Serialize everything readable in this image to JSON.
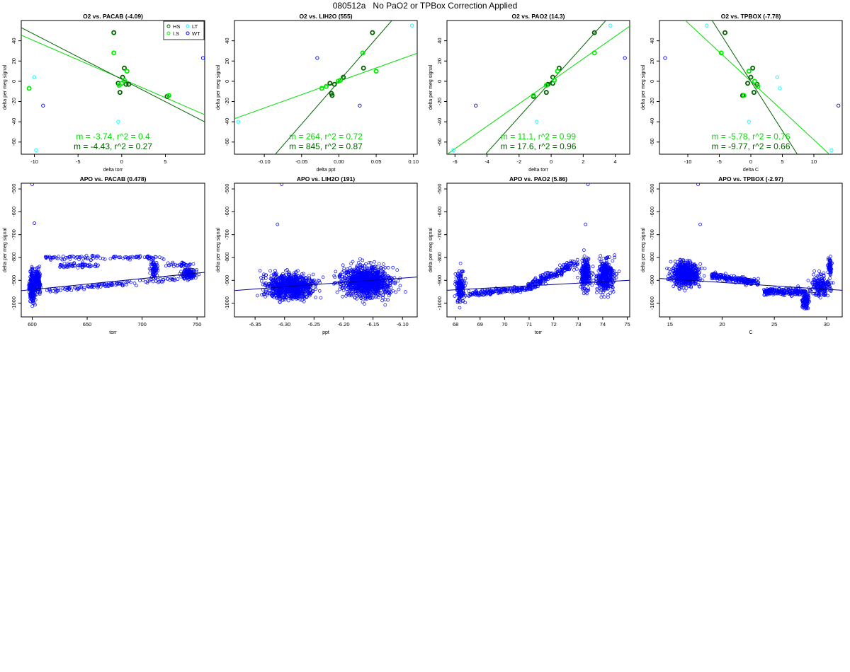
{
  "page": {
    "title": "080512a   No PaO2 or TPBox Correction Applied"
  },
  "colors": {
    "HS": "#006400",
    "I.S": "#00ee00",
    "LT": "#00ffff",
    "WT": "#0000ff",
    "fit_is": "#00dd00",
    "fit_hs": "#006400",
    "apo_points": "#0000ff",
    "apo_fit": "#00008b"
  },
  "chart_data": [
    {
      "type": "scatter",
      "title": "O2 vs. PACAB (-4.09)",
      "xlabel": "delta torr",
      "ylabel": "delta per meg signal",
      "xlim": [
        -11.5,
        9.5
      ],
      "ylim": [
        -72,
        60
      ],
      "xticks": [
        -10,
        -5,
        0,
        5
      ],
      "yticks": [
        -60,
        -40,
        -20,
        0,
        20,
        40
      ],
      "legend": {
        "position": "top-right",
        "entries": [
          "HS",
          "I.S",
          "LT",
          "WT"
        ]
      },
      "series": [
        {
          "name": "HS",
          "points": [
            [
              -0.9,
              48
            ],
            [
              0.3,
              13
            ],
            [
              -0.4,
              -2
            ],
            [
              0.1,
              4
            ],
            [
              0.5,
              -3
            ],
            [
              -0.2,
              -11
            ],
            [
              0.8,
              -3
            ],
            [
              5.2,
              -15
            ]
          ]
        },
        {
          "name": "I.S",
          "points": [
            [
              -0.9,
              28
            ],
            [
              0.6,
              10
            ],
            [
              -10.6,
              -7
            ],
            [
              -0.3,
              -4
            ],
            [
              0.3,
              1
            ],
            [
              5.4,
              -14
            ],
            [
              0,
              -2
            ]
          ]
        },
        {
          "name": "LT",
          "points": [
            [
              -9.8,
              -68
            ],
            [
              -0.4,
              -40
            ],
            [
              -10.0,
              4
            ]
          ]
        },
        {
          "name": "WT",
          "points": [
            [
              -9.0,
              -24
            ],
            [
              9.3,
              23
            ]
          ]
        }
      ],
      "fits": [
        {
          "series": "I.S",
          "slope": -3.74,
          "intercept": 2.5
        },
        {
          "series": "HS",
          "slope": -4.43,
          "intercept": 2.0
        }
      ],
      "annotations": [
        "m = -3.74, r^2 = 0.4",
        "m = -4.43, r^2 = 0.27"
      ]
    },
    {
      "type": "scatter",
      "title": "O2 vs. LIH2O (555)",
      "xlabel": "delta ppt",
      "ylabel": "delta per meg signal",
      "xlim": [
        -0.14,
        0.105
      ],
      "ylim": [
        -72,
        60
      ],
      "xticks": [
        -0.1,
        -0.05,
        0.0,
        0.05,
        0.1
      ],
      "yticks": [
        -60,
        -40,
        -20,
        0,
        20,
        40
      ],
      "series": [
        {
          "name": "HS",
          "points": [
            [
              0.045,
              48
            ],
            [
              0.033,
              13
            ],
            [
              -0.012,
              -2
            ],
            [
              -0.01,
              -12
            ],
            [
              -0.009,
              -14
            ],
            [
              -0.006,
              -3
            ],
            [
              0.006,
              4
            ]
          ]
        },
        {
          "name": "I.S",
          "points": [
            [
              0.032,
              28
            ],
            [
              0.05,
              10
            ],
            [
              -0.017,
              -5
            ],
            [
              -0.023,
              -7
            ],
            [
              -0.001,
              0
            ],
            [
              0.002,
              1
            ]
          ]
        },
        {
          "name": "LT",
          "points": [
            [
              0.098,
              55
            ],
            [
              -0.135,
              -40
            ]
          ]
        },
        {
          "name": "WT",
          "points": [
            [
              -0.029,
              23
            ],
            [
              0.028,
              -24
            ]
          ]
        }
      ],
      "fits": [
        {
          "series": "I.S",
          "slope": 264,
          "intercept": 0
        },
        {
          "series": "HS",
          "slope": 845,
          "intercept": 0
        }
      ],
      "annotations": [
        "m = 264, r^2 = 0.72",
        "m = 845, r^2 = 0.87"
      ]
    },
    {
      "type": "scatter",
      "title": "O2 vs. PAO2 (14.3)",
      "xlabel": "delta torr",
      "ylabel": "delta per meg signal",
      "xlim": [
        -6.5,
        4.9
      ],
      "ylim": [
        -72,
        60
      ],
      "xticks": [
        -6,
        -4,
        -2,
        0,
        2,
        4
      ],
      "yticks": [
        -60,
        -40,
        -20,
        0,
        20,
        40
      ],
      "series": [
        {
          "name": "HS",
          "points": [
            [
              2.7,
              48
            ],
            [
              0.5,
              13
            ],
            [
              0.1,
              4
            ],
            [
              -0.3,
              -11
            ],
            [
              -0.2,
              -3
            ],
            [
              0.1,
              -2
            ],
            [
              -1.1,
              -15
            ]
          ]
        },
        {
          "name": "I.S",
          "points": [
            [
              2.7,
              28
            ],
            [
              0.4,
              10
            ],
            [
              -0.3,
              -4
            ],
            [
              0.2,
              1
            ],
            [
              -1.1,
              -14
            ]
          ]
        },
        {
          "name": "LT",
          "points": [
            [
              3.7,
              55
            ],
            [
              -6.1,
              -68
            ],
            [
              -0.9,
              -40
            ]
          ]
        },
        {
          "name": "WT",
          "points": [
            [
              -4.7,
              -24
            ],
            [
              4.6,
              23
            ]
          ]
        }
      ],
      "fits": [
        {
          "series": "I.S",
          "slope": 11.1,
          "intercept": 0
        },
        {
          "series": "HS",
          "slope": 17.6,
          "intercept": 0
        }
      ],
      "annotations": [
        "m = 11.1, r^2 = 0.99",
        "m = 17.6, r^2 = 0.96"
      ]
    },
    {
      "type": "scatter",
      "title": "O2 vs. TPBOX (-7.78)",
      "xlabel": "delta C",
      "ylabel": "delta per meg signal",
      "xlim": [
        -14.5,
        14.5
      ],
      "ylim": [
        -72,
        60
      ],
      "xticks": [
        -10,
        -5,
        0,
        5,
        10
      ],
      "yticks": [
        -60,
        -40,
        -20,
        0,
        20,
        40
      ],
      "series": [
        {
          "name": "HS",
          "points": [
            [
              -4.1,
              48
            ],
            [
              0.3,
              13
            ],
            [
              0,
              4
            ],
            [
              1.0,
              -3
            ],
            [
              0.5,
              -11
            ],
            [
              -1.3,
              -14
            ],
            [
              -0.5,
              -2
            ]
          ]
        },
        {
          "name": "I.S",
          "points": [
            [
              -4.7,
              28
            ],
            [
              1.1,
              -5
            ],
            [
              -0.3,
              10
            ],
            [
              0.6,
              0
            ],
            [
              -1.1,
              -14
            ]
          ]
        },
        {
          "name": "LT",
          "points": [
            [
              -7.0,
              55
            ],
            [
              -0.3,
              -40
            ],
            [
              12.8,
              -68
            ],
            [
              4.2,
              4
            ],
            [
              4.6,
              -7
            ]
          ]
        },
        {
          "name": "WT",
          "points": [
            [
              -13.6,
              23
            ],
            [
              13.9,
              -24
            ]
          ]
        }
      ],
      "fits": [
        {
          "series": "I.S",
          "slope": -5.78,
          "intercept": 0
        },
        {
          "series": "HS",
          "slope": -9.77,
          "intercept": 0
        }
      ],
      "annotations": [
        "m = -5.78, r^2 = 0.76",
        "m = -9.77, r^2 = 0.66"
      ]
    },
    {
      "type": "scatter",
      "title": "APO vs. PACAB (0.478)",
      "xlabel": "torr",
      "ylabel": "delta per meg signal",
      "xlim": [
        590,
        757
      ],
      "ylim": [
        -1060,
        -475
      ],
      "xticks": [
        600,
        650,
        700,
        750
      ],
      "yticks": [
        -1000,
        -900,
        -800,
        -700,
        -600,
        -500
      ],
      "outliers": [
        [
          600,
          -480
        ],
        [
          602,
          -650
        ]
      ],
      "fit": {
        "slope": 0.478,
        "intercept": -1227
      }
    },
    {
      "type": "scatter",
      "title": "APO vs. LIH2O (191)",
      "xlabel": "ppt",
      "ylabel": "delta per meg signal",
      "xlim": [
        -6.385,
        -6.075
      ],
      "ylim": [
        -1060,
        -475
      ],
      "xticks": [
        -6.35,
        -6.3,
        -6.25,
        -6.2,
        -6.15,
        -6.1
      ],
      "yticks": [
        -1000,
        -900,
        -800,
        -700,
        -600,
        -500
      ],
      "outliers": [
        [
          -6.305,
          -480
        ],
        [
          -6.312,
          -655
        ]
      ],
      "fit": {
        "slope": 191,
        "intercept": 275
      }
    },
    {
      "type": "scatter",
      "title": "APO vs. PAO2 (5.86)",
      "xlabel": "torr",
      "ylabel": "delta per meg signal",
      "xlim": [
        67.65,
        75.1
      ],
      "ylim": [
        -1060,
        -475
      ],
      "xticks": [
        68,
        69,
        70,
        71,
        72,
        73,
        74,
        75
      ],
      "yticks": [
        -1000,
        -900,
        -800,
        -700,
        -600,
        -500
      ],
      "outliers": [
        [
          73.4,
          -480
        ],
        [
          73.3,
          -655
        ]
      ],
      "fit": {
        "slope": 5.86,
        "intercept": -1340
      }
    },
    {
      "type": "scatter",
      "title": "APO vs. TPBOX (-2.97)",
      "xlabel": "C",
      "ylabel": "delta per meg signal",
      "xlim": [
        14,
        31.5
      ],
      "ylim": [
        -1060,
        -475
      ],
      "xticks": [
        15,
        20,
        25,
        30
      ],
      "yticks": [
        -1000,
        -900,
        -800,
        -700,
        -600,
        -500
      ],
      "outliers": [
        [
          17.7,
          -480
        ],
        [
          17.9,
          -655
        ]
      ],
      "fit": {
        "slope": -2.97,
        "intercept": -850
      }
    }
  ]
}
